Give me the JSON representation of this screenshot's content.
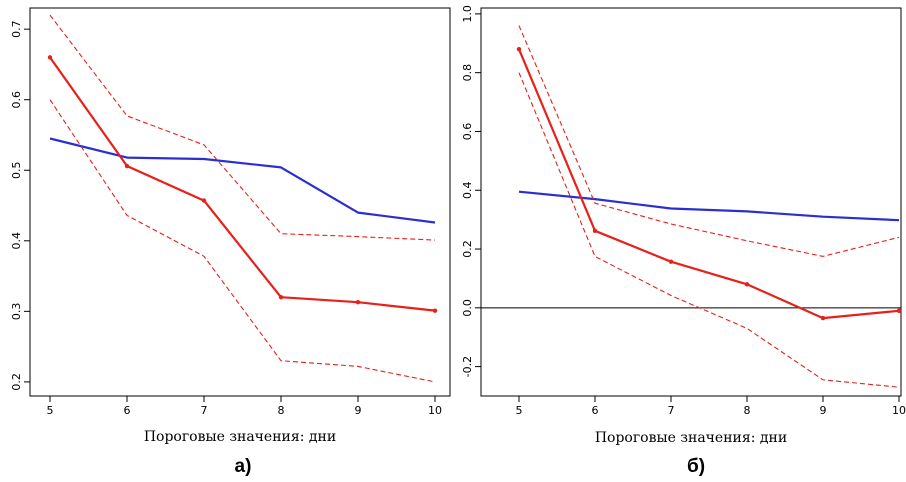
{
  "colors": {
    "red": "#e8201a",
    "blue": "#2a2fcf",
    "axis": "#000000",
    "zero": "#000000"
  },
  "chart_data": [
    {
      "type": "line",
      "caption": "а)",
      "xlabel": "Пороговые значения: дни",
      "ylabel": "",
      "x": [
        5,
        6,
        7,
        8,
        9,
        10
      ],
      "xlim": [
        5,
        10
      ],
      "ylim": [
        0.18,
        0.73
      ],
      "x_ticks": [
        "5",
        "6",
        "7",
        "8",
        "9",
        "10"
      ],
      "y_ticks": [
        0.2,
        0.3,
        0.4,
        0.5,
        0.6,
        0.7
      ],
      "y_tick_labels": [
        "0.2",
        "0.3",
        "0.4",
        "0.5",
        "0.6",
        "0.7"
      ],
      "zero_line": false,
      "series": [
        {
          "role": "blue-line",
          "color": "blue",
          "style": "solid",
          "markers": false,
          "values": [
            0.545,
            0.518,
            0.516,
            0.504,
            0.44,
            0.426
          ]
        },
        {
          "role": "red-line",
          "color": "red",
          "style": "solid",
          "markers": true,
          "values": [
            0.66,
            0.506,
            0.457,
            0.32,
            0.313,
            0.301
          ]
        },
        {
          "role": "red-upper",
          "color": "red",
          "style": "dashed",
          "markers": false,
          "values": [
            0.72,
            0.577,
            0.536,
            0.41,
            0.406,
            0.401
          ]
        },
        {
          "role": "red-lower",
          "color": "red",
          "style": "dashed",
          "markers": false,
          "values": [
            0.6,
            0.436,
            0.378,
            0.23,
            0.222,
            0.2
          ]
        }
      ]
    },
    {
      "type": "line",
      "caption": "б)",
      "xlabel": "Пороговые значения: дни",
      "ylabel": "",
      "x": [
        5,
        6,
        7,
        8,
        9,
        10
      ],
      "xlim": [
        5,
        10
      ],
      "ylim": [
        -0.3,
        1.02
      ],
      "x_ticks": [
        "5",
        "6",
        "7",
        "8",
        "9",
        "10"
      ],
      "y_ticks": [
        -0.2,
        0.0,
        0.2,
        0.4,
        0.6,
        0.8,
        1.0
      ],
      "y_tick_labels": [
        "-0.2",
        "0.0",
        "0.2",
        "0.4",
        "0.6",
        "0.8",
        "1.0"
      ],
      "zero_line": true,
      "series": [
        {
          "role": "blue-line",
          "color": "blue",
          "style": "solid",
          "markers": false,
          "values": [
            0.395,
            0.37,
            0.338,
            0.328,
            0.31,
            0.298
          ]
        },
        {
          "role": "red-line",
          "color": "red",
          "style": "solid",
          "markers": true,
          "values": [
            0.88,
            0.262,
            0.157,
            0.08,
            -0.035,
            -0.01
          ]
        },
        {
          "role": "red-upper",
          "color": "red",
          "style": "dashed",
          "markers": false,
          "values": [
            0.96,
            0.356,
            0.285,
            0.228,
            0.175,
            0.24
          ]
        },
        {
          "role": "red-lower",
          "color": "red",
          "style": "dashed",
          "markers": false,
          "values": [
            0.8,
            0.175,
            0.042,
            -0.07,
            -0.245,
            -0.27
          ]
        }
      ]
    }
  ]
}
